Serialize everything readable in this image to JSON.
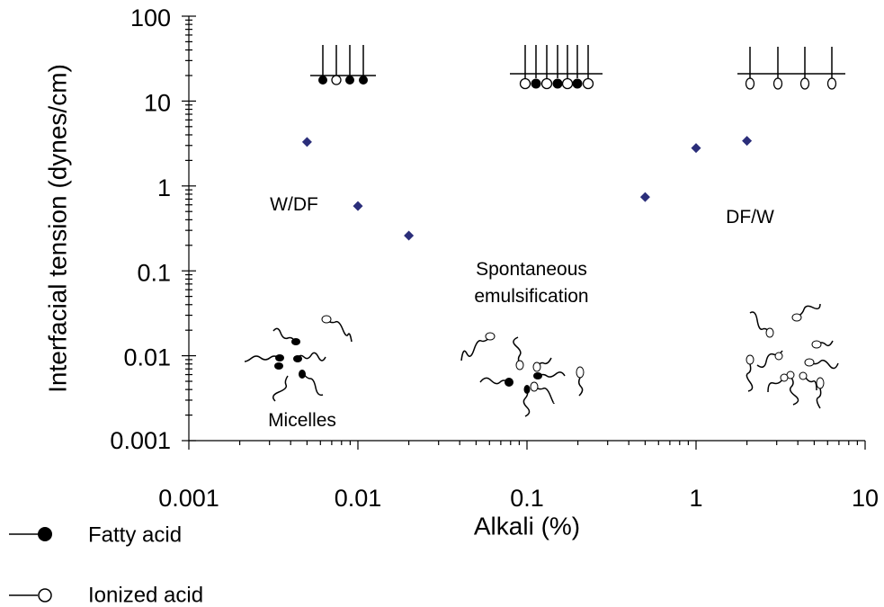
{
  "chart_data": {
    "type": "scatter",
    "x_label": "Alkali (%)",
    "y_label": "Interfacial tension (dynes/cm)",
    "log_x": true,
    "log_y": true,
    "xlim": [
      0.001,
      10
    ],
    "xticks": [
      0.001,
      0.01,
      0.1,
      1,
      10
    ],
    "ylim": [
      0.001,
      100
    ],
    "yticks": [
      0.001,
      0.01,
      0.1,
      1,
      10,
      100
    ],
    "series": [
      {
        "color": "#2b2e7a",
        "marker": "diamond",
        "x": [
          0.005,
          0.01,
          0.02,
          0.5,
          1,
          2
        ],
        "values": [
          3.3,
          0.58,
          0.26,
          0.74,
          2.8,
          3.4
        ]
      }
    ],
    "annotations": [
      {
        "lines": [
          "W/DF"
        ]
      },
      {
        "lines": [
          "DF/W"
        ]
      },
      {
        "lines": [
          "Spontaneous",
          "emulsification"
        ]
      },
      {
        "lines": [
          "Micelles"
        ]
      }
    ],
    "legend": [
      {
        "label": "Fatty acid",
        "marker": "filled-circle"
      },
      {
        "label": "Ionized acid",
        "marker": "open-circle"
      }
    ]
  }
}
